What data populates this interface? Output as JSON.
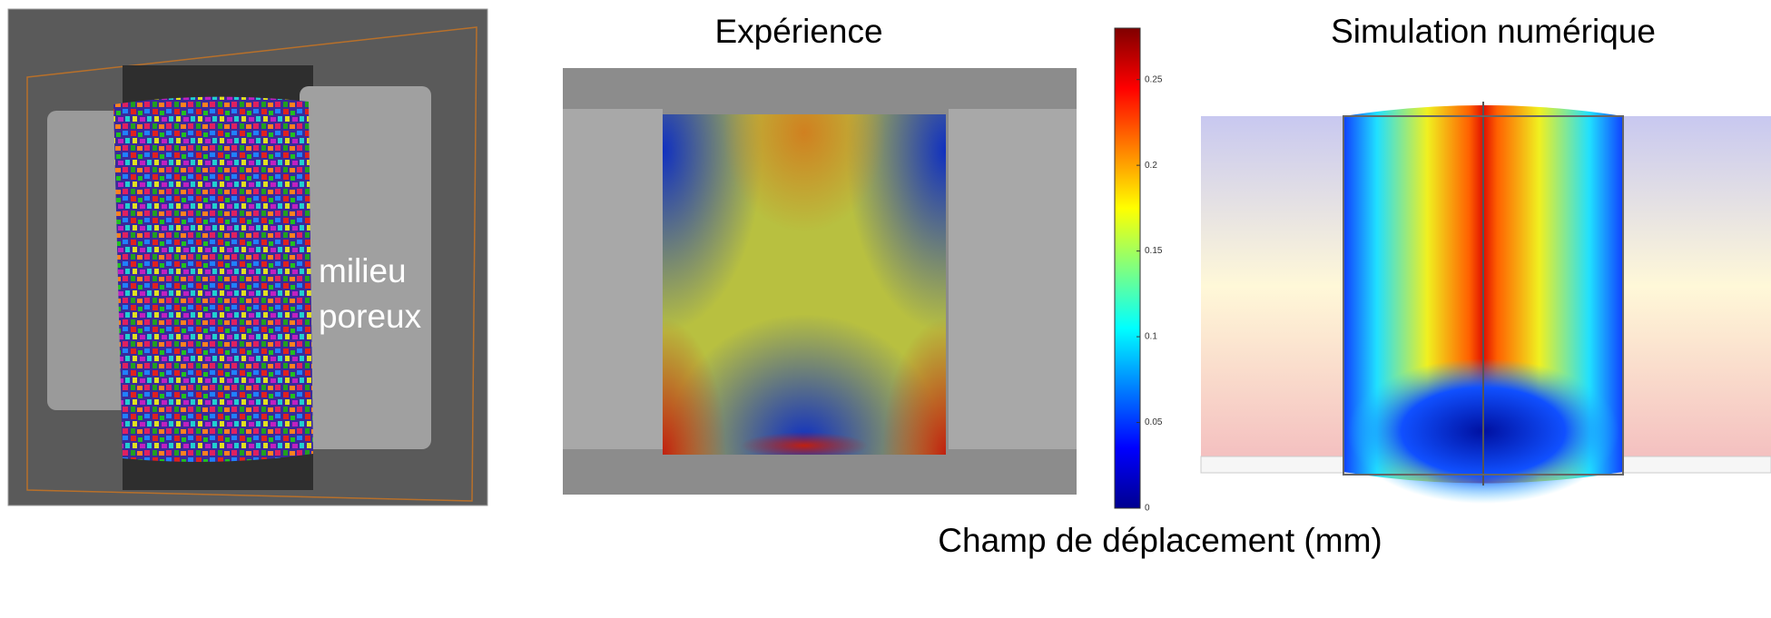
{
  "panels": [
    {
      "label": "milieu poreux"
    },
    {
      "title": "Expérience"
    },
    {
      "title": "Simulation numérique"
    }
  ],
  "colorbar": {
    "lim": [
      0,
      0.28
    ],
    "ticks": [
      0,
      0.05,
      0.1,
      0.15,
      0.2,
      0.25
    ]
  },
  "caption": "Champ de déplacement (mm)"
}
